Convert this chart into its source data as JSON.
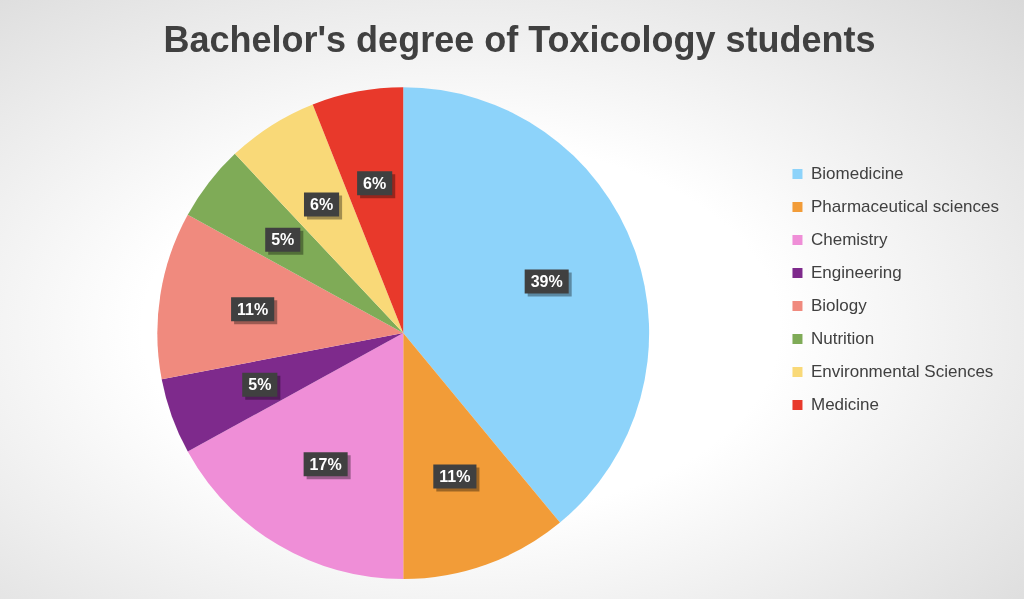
{
  "chart_data": {
    "type": "pie",
    "title": "Bachelor's degree of Toxicology students",
    "categories": [
      "Biomedicine",
      "Pharmaceutical sciences",
      "Chemistry",
      "Engineering",
      "Biology",
      "Nutrition",
      "Environmental Sciences",
      "Medicine"
    ],
    "values": [
      39,
      11,
      17,
      5,
      11,
      5,
      6,
      6
    ],
    "colors": [
      "#8dd3fa",
      "#f29c38",
      "#ef8ed7",
      "#7e2a8c",
      "#f08a7e",
      "#7fab57",
      "#f9d978",
      "#e8392b"
    ],
    "value_labels": [
      "39%",
      "11%",
      "17%",
      "5%",
      "11%",
      "5%",
      "6%",
      "6%"
    ],
    "legend": "right"
  }
}
